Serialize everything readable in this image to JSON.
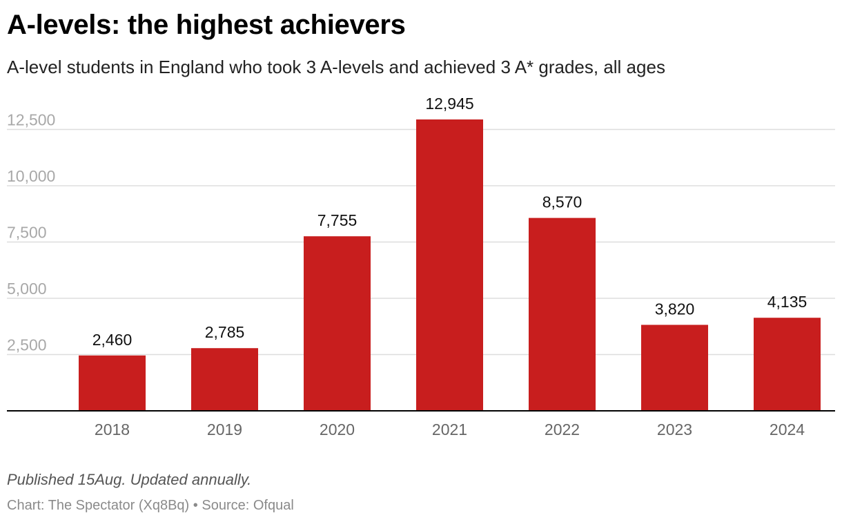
{
  "header": {
    "title": "A-levels: the highest achievers",
    "subtitle": "A-level students in England who took 3 A-levels and achieved 3 A* grades, all ages"
  },
  "footer": {
    "note": "Published 15Aug. Updated annually.",
    "credit_chart": "Chart: The Spectator (Xq8Bq)",
    "credit_separator": "•",
    "credit_source": "Source: Ofqual"
  },
  "colors": {
    "bar": "#c81e1e",
    "grid": "#dddddd",
    "axis": "#000000",
    "tick_label": "#a8a8a8",
    "category_label": "#666666",
    "data_label": "#111111"
  },
  "chart_data": {
    "type": "bar",
    "title": "A-levels: the highest achievers",
    "subtitle": "A-level students in England who took 3 A-levels and achieved 3 A* grades, all ages",
    "xlabel": "",
    "ylabel": "",
    "categories": [
      "2018",
      "2019",
      "2020",
      "2021",
      "2022",
      "2023",
      "2024"
    ],
    "values": [
      2460,
      2785,
      7755,
      12945,
      8570,
      3820,
      4135
    ],
    "value_labels": [
      "2,460",
      "2,785",
      "7,755",
      "12,945",
      "8,570",
      "3,820",
      "4,135"
    ],
    "y_ticks": [
      2500,
      5000,
      7500,
      10000,
      12500
    ],
    "y_tick_labels": [
      "2,500",
      "5,000",
      "7,500",
      "10,000",
      "12,500"
    ],
    "ylim": [
      0,
      12500
    ],
    "grid": true,
    "legend": "none"
  }
}
